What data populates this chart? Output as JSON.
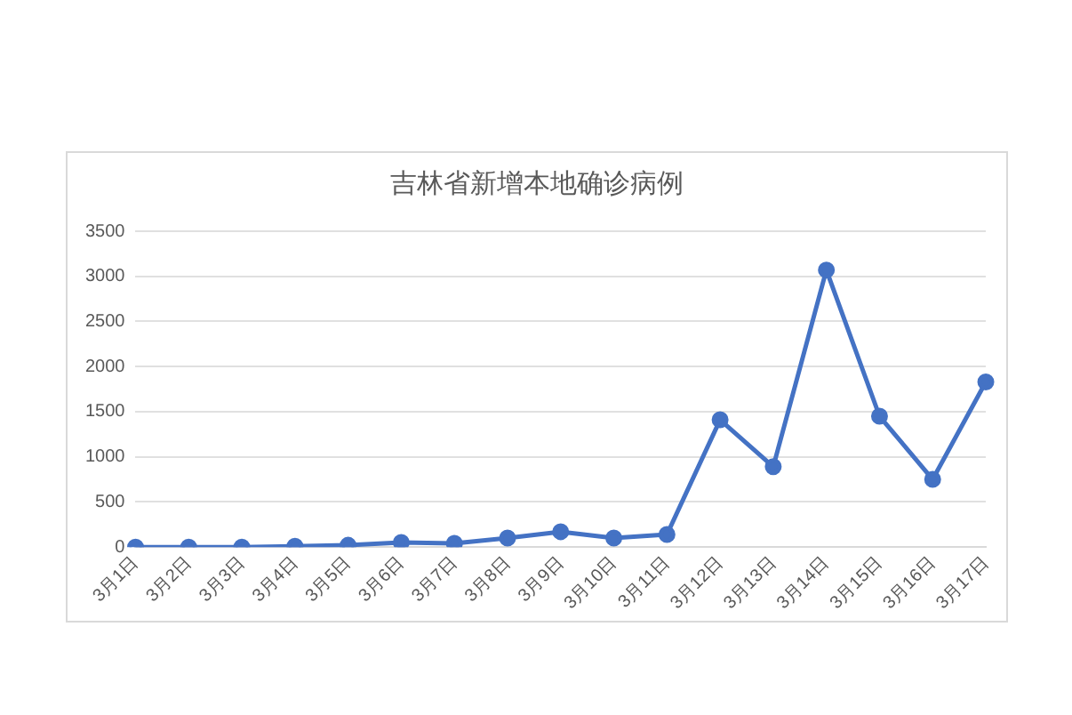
{
  "chart_data": {
    "type": "line",
    "title": "吉林省新增本地确诊病例",
    "categories": [
      "3月1日",
      "3月2日",
      "3月3日",
      "3月4日",
      "3月5日",
      "3月6日",
      "3月7日",
      "3月8日",
      "3月9日",
      "3月10日",
      "3月11日",
      "3月12日",
      "3月13日",
      "3月14日",
      "3月15日",
      "3月16日",
      "3月17日"
    ],
    "series": [
      {
        "color": "#4472c4",
        "values": [
          0,
          0,
          0,
          10,
          20,
          50,
          40,
          100,
          170,
          100,
          140,
          1410,
          890,
          3070,
          1450,
          750,
          1830
        ]
      }
    ],
    "ylim": [
      0,
      3500
    ],
    "yticks": [
      0,
      500,
      1000,
      1500,
      2000,
      2500,
      3000,
      3500
    ],
    "grid": "y",
    "marker": "circle",
    "line_style": "solid"
  }
}
